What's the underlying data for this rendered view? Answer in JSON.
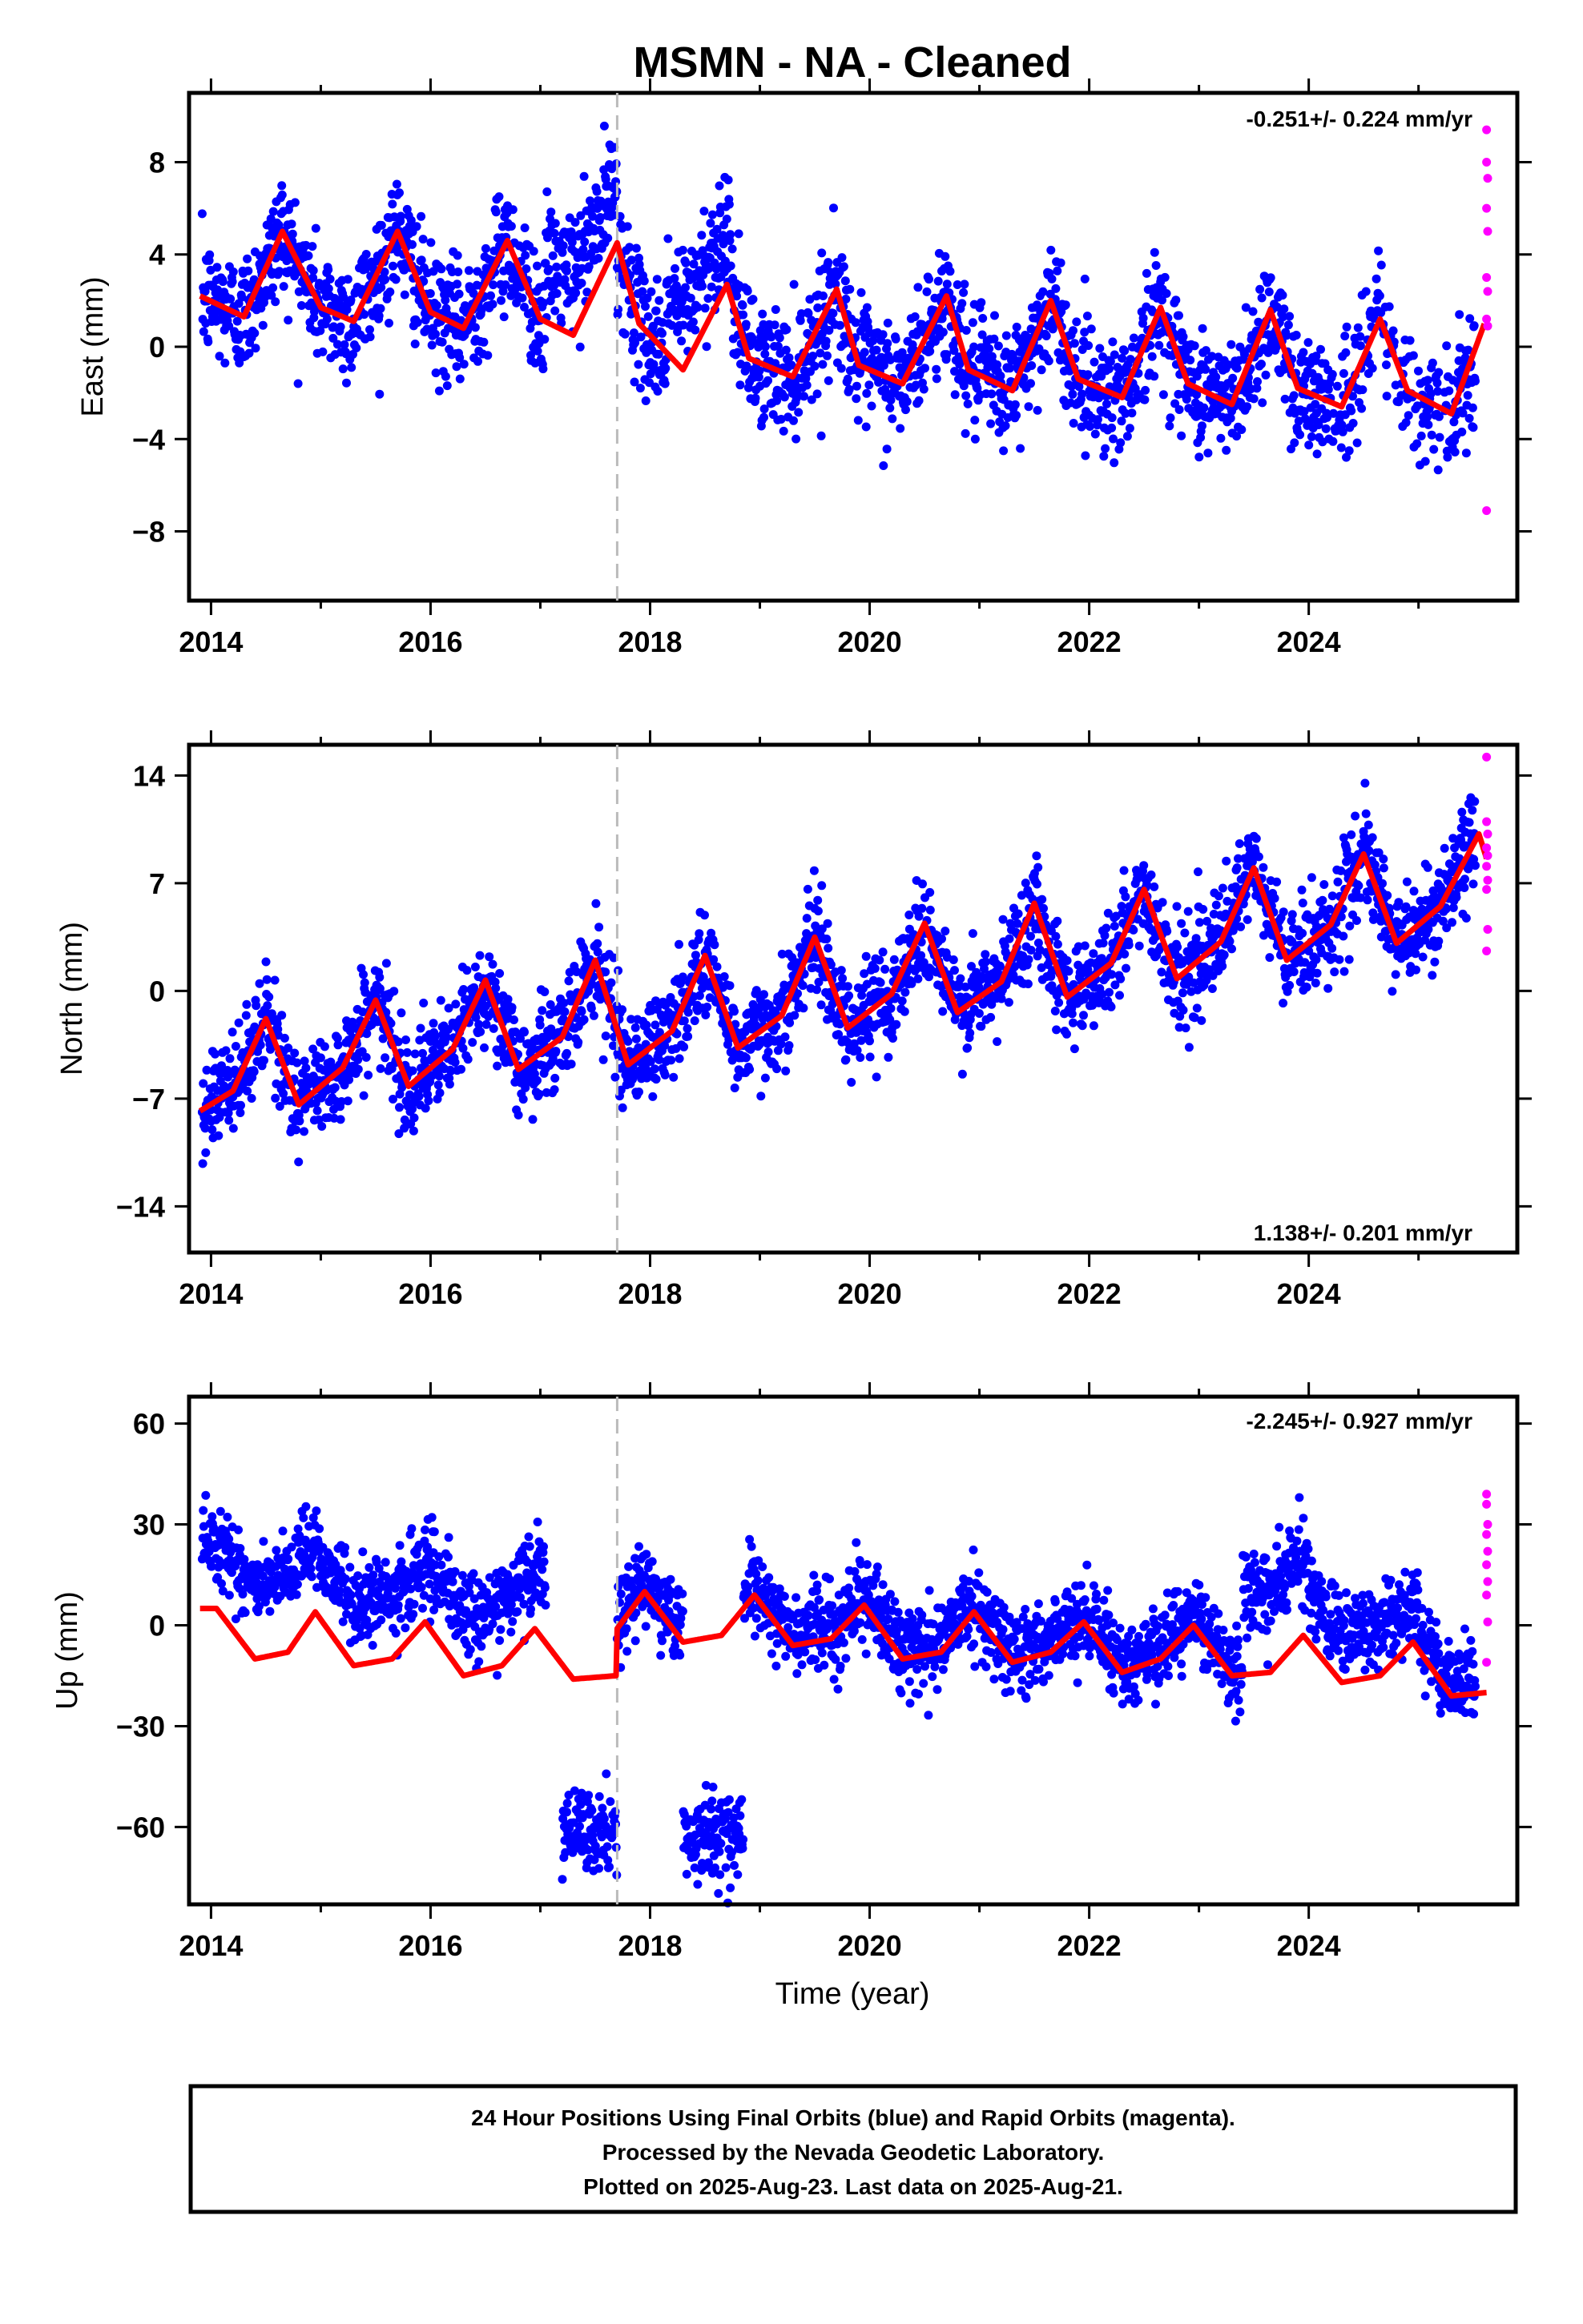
{
  "chart_data": {
    "title": "MSMN  - NA - Cleaned",
    "xlabel": "Time (year)",
    "xlim": [
      2013.8,
      2025.9
    ],
    "xticks": [
      2014,
      2016,
      2018,
      2020,
      2022,
      2024
    ],
    "event_line_year": 2017.7,
    "series_colors": {
      "final": "#0000ff",
      "rapid": "#ff00ff",
      "model": "#ff0000",
      "event": "#bbbbbb"
    },
    "panels": [
      {
        "type": "scatter",
        "ylabel": "East (mm)",
        "ylim": [
          -11,
          11
        ],
        "yticks": [
          8,
          4,
          0,
          -4,
          -8
        ],
        "ytick_labels": [
          "8",
          "4",
          "0",
          "−4",
          "−8"
        ],
        "rate_text": "-0.251+/- 0.224 mm/yr",
        "rate_position": "top-right",
        "model": {
          "x": [
            2013.9,
            2014.3,
            2014.65,
            2015.0,
            2015.3,
            2015.7,
            2016.0,
            2016.3,
            2016.7,
            2017.0,
            2017.3,
            2017.7,
            2017.9,
            2018.3,
            2018.7,
            2018.9,
            2019.3,
            2019.7,
            2019.9,
            2020.3,
            2020.7,
            2020.9,
            2021.3,
            2021.65,
            2021.9,
            2022.3,
            2022.65,
            2022.9,
            2023.3,
            2023.65,
            2023.9,
            2024.3,
            2024.65,
            2024.9,
            2025.3,
            2025.6
          ],
          "y": [
            2.2,
            1.3,
            5.0,
            1.7,
            1.1,
            5.0,
            1.5,
            0.8,
            4.6,
            1.2,
            0.5,
            4.5,
            1.0,
            -1.0,
            2.7,
            -0.5,
            -1.3,
            2.5,
            -0.8,
            -1.6,
            2.2,
            -1.0,
            -1.9,
            2.0,
            -1.4,
            -2.2,
            1.7,
            -1.6,
            -2.5,
            1.6,
            -1.8,
            -2.6,
            1.2,
            -1.9,
            -2.9,
            1.0
          ]
        },
        "rapid": {
          "x": [
            2025.62,
            2025.62,
            2025.63,
            2025.62,
            2025.63,
            2025.62,
            2025.63,
            2025.62,
            2025.63,
            2025.62
          ],
          "y": [
            9.4,
            8.0,
            7.3,
            6.0,
            5.0,
            3.0,
            2.4,
            1.2,
            0.9,
            -7.1
          ]
        }
      },
      {
        "type": "scatter",
        "ylabel": "North (mm)",
        "ylim": [
          -17,
          16
        ],
        "yticks": [
          14,
          7,
          0,
          -7,
          -14
        ],
        "ytick_labels": [
          "14",
          "7",
          "0",
          "−7",
          "−14"
        ],
        "rate_text": "1.138+/- 0.201 mm/yr",
        "rate_position": "bottom-right",
        "model": {
          "x": [
            2013.9,
            2014.2,
            2014.5,
            2014.8,
            2015.2,
            2015.5,
            2015.8,
            2016.2,
            2016.5,
            2016.8,
            2017.2,
            2017.5,
            2017.8,
            2018.2,
            2018.5,
            2018.8,
            2019.2,
            2019.5,
            2019.8,
            2020.2,
            2020.5,
            2020.8,
            2021.2,
            2021.5,
            2021.8,
            2022.2,
            2022.5,
            2022.8,
            2023.2,
            2023.5,
            2023.8,
            2024.2,
            2024.5,
            2024.8,
            2025.2,
            2025.55,
            2025.62
          ],
          "y": [
            -7.8,
            -6.5,
            -1.8,
            -7.4,
            -5.0,
            -0.6,
            -6.2,
            -3.8,
            0.7,
            -5.1,
            -3.0,
            2.0,
            -4.8,
            -2.6,
            2.3,
            -3.7,
            -1.6,
            3.5,
            -2.4,
            -0.2,
            4.4,
            -1.4,
            0.6,
            5.7,
            -0.4,
            1.8,
            6.6,
            0.8,
            3.2,
            8.0,
            2.0,
            4.3,
            8.9,
            3.1,
            5.5,
            10.2,
            8.6
          ]
        },
        "rapid": {
          "x": [
            2025.62,
            2025.62,
            2025.63,
            2025.62,
            2025.63,
            2025.62,
            2025.63,
            2025.62,
            2025.63,
            2025.62
          ],
          "y": [
            15.2,
            11.0,
            10.2,
            9.3,
            8.8,
            8.1,
            7.2,
            6.6,
            4.0,
            2.6
          ]
        }
      },
      {
        "type": "scatter",
        "ylabel": "Up (mm)",
        "ylim": [
          -83,
          68
        ],
        "yticks": [
          60,
          30,
          0,
          -30,
          -60
        ],
        "ytick_labels": [
          "60",
          "30",
          "0",
          "−30",
          "−60"
        ],
        "rate_text": "-2.245+/- 0.927 mm/yr",
        "rate_position": "top-right",
        "model": {
          "x": [
            2013.9,
            2014.05,
            2014.4,
            2014.7,
            2014.95,
            2015.3,
            2015.65,
            2015.95,
            2016.3,
            2016.65,
            2016.95,
            2017.3,
            2017.69,
            2017.7,
            2017.95,
            2018.3,
            2018.65,
            2018.95,
            2019.3,
            2019.65,
            2019.95,
            2020.3,
            2020.65,
            2020.95,
            2021.3,
            2021.65,
            2021.95,
            2022.3,
            2022.65,
            2022.95,
            2023.3,
            2023.65,
            2023.95,
            2024.3,
            2024.65,
            2024.95,
            2025.3,
            2025.62
          ],
          "y": [
            5,
            5,
            -10,
            -8,
            4,
            -12,
            -10,
            1,
            -15,
            -12,
            -1,
            -16,
            -15,
            -1,
            10,
            -5,
            -3,
            9,
            -6,
            -4,
            6,
            -10,
            -8,
            4,
            -11,
            -8,
            1,
            -14,
            -10,
            0,
            -15,
            -14,
            -3,
            -17,
            -15,
            -5,
            -21,
            -20
          ]
        },
        "rapid": {
          "x": [
            2025.62,
            2025.62,
            2025.63,
            2025.62,
            2025.63,
            2025.62,
            2025.63,
            2025.62,
            2025.63,
            2025.62
          ],
          "y": [
            39,
            36,
            30,
            27,
            22,
            18,
            13,
            9,
            1,
            -11
          ]
        }
      }
    ]
  },
  "footer": {
    "line1": "24 Hour Positions Using Final Orbits (blue) and Rapid Orbits (magenta).",
    "line2": "Processed by the Nevada Geodetic Laboratory.",
    "line3": "Plotted on 2025-Aug-23. Last data on 2025-Aug-21."
  }
}
